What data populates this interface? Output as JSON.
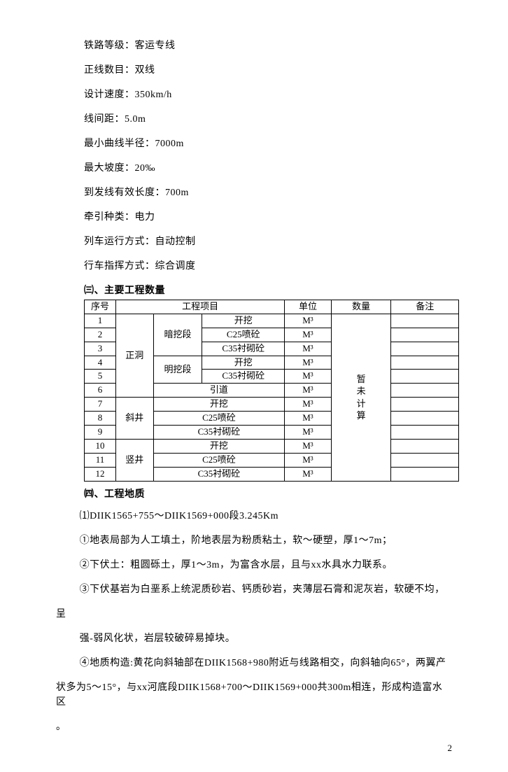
{
  "specs": {
    "rail_grade_label": "铁路等级：",
    "rail_grade_value": "客运专线",
    "main_lines_label": "正线数目：",
    "main_lines_value": "双线",
    "design_speed_label": "设计速度：",
    "design_speed_value": "350km/h",
    "track_spacing_label": "线间距：",
    "track_spacing_value": "5.0m",
    "min_curve_label": "最小曲线半径：",
    "min_curve_value": "7000m",
    "max_grade_label": "最大坡度：",
    "max_grade_value": "20‰",
    "eff_len_label": "到发线有效长度：",
    "eff_len_value": "700m",
    "traction_label": "牵引种类：",
    "traction_value": "电力",
    "train_op_label": "列车运行方式：",
    "train_op_value": "自动控制",
    "dispatch_label": "行车指挥方式：",
    "dispatch_value": "综合调度"
  },
  "sections": {
    "qty_heading": "㈢、主要工程数量",
    "geo_heading": "㈣、工程地质"
  },
  "table": {
    "headers": {
      "seq": "序号",
      "project": "工程项目",
      "unit": "单位",
      "qty": "数量",
      "note": "备注"
    },
    "groups": {
      "zhengdong": "正洞",
      "xiejing": "斜井",
      "shujing": "竖井"
    },
    "subgroups": {
      "anwa": "暗挖段",
      "mingwa": "明挖段"
    },
    "items": {
      "kaiwa": "开挖",
      "c25pen": "C25喷砼",
      "c35chen": "C35衬砌砼",
      "yindao": "引道"
    },
    "unit_m3": "M³",
    "seq": [
      "1",
      "2",
      "3",
      "4",
      "5",
      "6",
      "7",
      "8",
      "9",
      "10",
      "11",
      "12"
    ],
    "qty_pending": "暂未计算"
  },
  "geo": {
    "range_line": "⑴DIIK1565+755～DIIK1569+000段3.245Km",
    "p1": "①地表局部为人工填土，阶地表层为粉质粘土，软～硬塑，厚1～7m；",
    "p2": "②下伏土：粗圆砾土，厚1～3m，为富含水层，且与xx水具水力联系。",
    "p3": "③下伏基岩为白垩系上统泥质砂岩、钙质砂岩，夹薄层石膏和泥灰岩，软硬不均，",
    "p3_cont1": "呈",
    "p3_cont2": "强-弱风化状，岩层较破碎易掉块。",
    "p4": "④地质构造:黄花向斜轴部在DIIK1568+980附近与线路相交，向斜轴向65°，两翼产",
    "p4_cont": "状多为5～15°，与xx河底段DIIK1568+700～DIIK1569+000共300m相连，形成构造富水区",
    "p4_end": "。"
  },
  "page_number": "2"
}
